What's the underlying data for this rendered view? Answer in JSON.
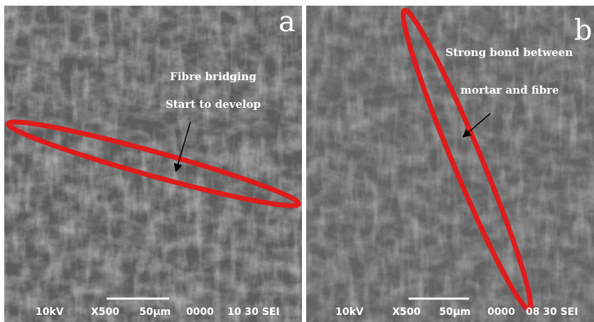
{
  "panels": [
    {
      "label": "a",
      "annotations": [
        "Fibre bridging",
        "Start to develop"
      ],
      "footer": {
        "voltage": "10kV",
        "magnification": "X500",
        "scale": "50µm",
        "code": "0000",
        "info": "10 30 SEI"
      }
    },
    {
      "label": "b",
      "annotations": [
        "Strong bond between",
        "mortar and fibre"
      ],
      "footer": {
        "voltage": "10kV",
        "magnification": "X500",
        "scale": "50µm",
        "code": "0000",
        "info": "08 30 SEI"
      }
    }
  ]
}
